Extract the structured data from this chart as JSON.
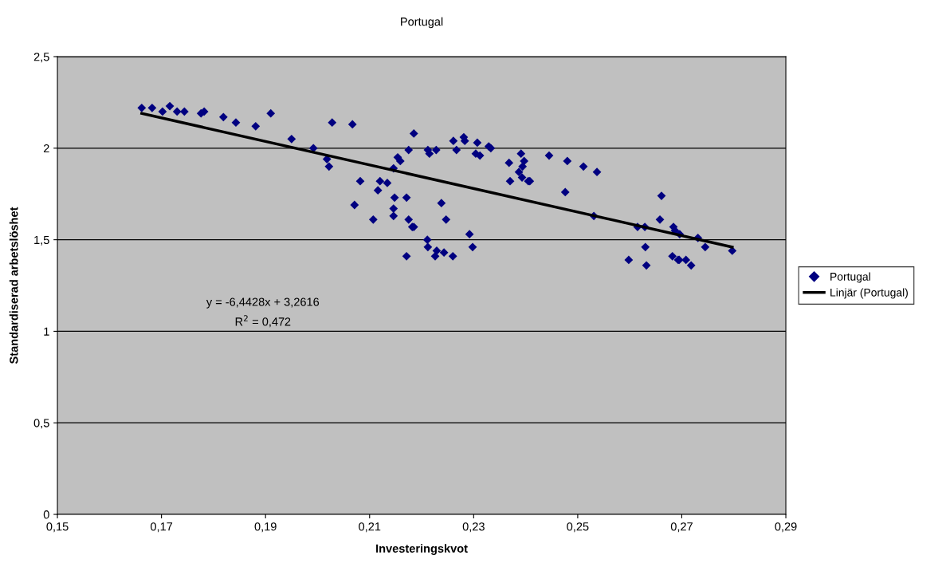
{
  "chart_data": {
    "type": "scatter",
    "title": "Portugal",
    "xlabel": "Investeringskvot",
    "ylabel": "Standardiserad arbetslöshet",
    "xlim": [
      0.15,
      0.29
    ],
    "xticks": [
      {
        "value": 0.15,
        "label": "0,15"
      },
      {
        "value": 0.17,
        "label": "0,17"
      },
      {
        "value": 0.19,
        "label": "0,19"
      },
      {
        "value": 0.21,
        "label": "0,21"
      },
      {
        "value": 0.23,
        "label": "0,23"
      },
      {
        "value": 0.25,
        "label": "0,25"
      },
      {
        "value": 0.27,
        "label": "0,27"
      },
      {
        "value": 0.29,
        "label": "0,29"
      }
    ],
    "ylim": [
      0,
      2.5
    ],
    "yticks": [
      0,
      {
        "value": 0.5,
        "label": "0,5"
      },
      1,
      {
        "value": 1.5,
        "label": "1,5"
      },
      2,
      {
        "value": 2.5,
        "label": "2,5"
      }
    ],
    "grid": "y",
    "legend": "right",
    "marker": "diamond",
    "series": [
      {
        "name": "Portugal",
        "color": "#000080",
        "x": [
          0.1662,
          0.1682,
          0.1702,
          0.1716,
          0.173,
          0.1744,
          0.1776,
          0.1782,
          0.1819,
          0.1843,
          0.1881,
          0.191,
          0.195,
          0.1992,
          0.2018,
          0.2022,
          0.2028,
          0.2067,
          0.2071,
          0.2082,
          0.2107,
          0.2116,
          0.212,
          0.2134,
          0.2146,
          0.2146,
          0.2146,
          0.2148,
          0.2154,
          0.2159,
          0.2171,
          0.2171,
          0.2175,
          0.2175,
          0.2182,
          0.2185,
          0.2185,
          0.2211,
          0.2212,
          0.2212,
          0.2215,
          0.2228,
          0.2226,
          0.2229,
          0.2238,
          0.2243,
          0.2247,
          0.226,
          0.2261,
          0.2267,
          0.2281,
          0.2283,
          0.2292,
          0.2298,
          0.2304,
          0.2307,
          0.2312,
          0.2329,
          0.2333,
          0.2368,
          0.237,
          0.2387,
          0.2391,
          0.2393,
          0.2394,
          0.2397,
          0.2405,
          0.2408,
          0.2445,
          0.2476,
          0.248,
          0.2511,
          0.2531,
          0.2537,
          0.2598,
          0.2615,
          0.2629,
          0.263,
          0.2632,
          0.2658,
          0.2661,
          0.2682,
          0.2684,
          0.2687,
          0.2693,
          0.2695,
          0.2696,
          0.2708,
          0.2718,
          0.2731,
          0.2745,
          0.2797
        ],
        "values": [
          2.22,
          2.22,
          2.2,
          2.23,
          2.2,
          2.2,
          2.19,
          2.2,
          2.17,
          2.14,
          2.12,
          2.19,
          2.05,
          2.0,
          1.94,
          1.9,
          2.14,
          2.13,
          1.69,
          1.82,
          1.61,
          1.77,
          1.82,
          1.81,
          1.89,
          1.67,
          1.63,
          1.73,
          1.95,
          1.93,
          1.73,
          1.41,
          1.99,
          1.61,
          1.57,
          1.57,
          2.08,
          1.5,
          1.46,
          1.99,
          1.97,
          1.99,
          1.41,
          1.44,
          1.7,
          1.43,
          1.61,
          1.41,
          2.04,
          1.99,
          2.06,
          2.04,
          1.53,
          1.46,
          1.97,
          2.03,
          1.96,
          2.01,
          2.0,
          1.92,
          1.82,
          1.87,
          1.97,
          1.84,
          1.9,
          1.93,
          1.82,
          1.82,
          1.96,
          1.76,
          1.93,
          1.9,
          1.63,
          1.87,
          1.39,
          1.57,
          1.57,
          1.46,
          1.36,
          1.61,
          1.74,
          1.41,
          1.57,
          1.55,
          1.39,
          1.39,
          1.53,
          1.39,
          1.36,
          1.51,
          1.46,
          1.44
        ]
      },
      {
        "name": "Linjär (Portugal)",
        "type": "line",
        "color": "#000000",
        "marker": "none",
        "x": [
          0.1662,
          0.2797
        ],
        "values": [
          2.19,
          1.46
        ]
      }
    ],
    "annotations": [
      "y = -6,4428x + 3,2616",
      "R$^{2}$ = 0,472"
    ]
  }
}
